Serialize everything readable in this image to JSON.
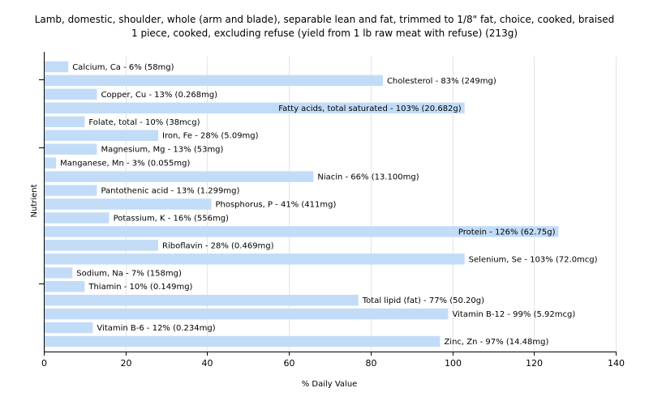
{
  "chart_data": {
    "type": "bar",
    "orientation": "horizontal",
    "title_lines": [
      "Lamb, domestic, shoulder, whole (arm and blade), separable lean and fat, trimmed to 1/8\" fat, choice, cooked, braised",
      "1 piece, cooked, excluding refuse (yield from 1 lb raw meat with refuse) (213g)"
    ],
    "xlabel": "% Daily Value",
    "ylabel": "Nutrient",
    "xlim": [
      0,
      140
    ],
    "xticks": [
      0,
      20,
      40,
      60,
      80,
      100,
      120,
      140
    ],
    "grid": true,
    "bar_color": "#c2dcf8",
    "bars": [
      {
        "name": "Calcium, Ca",
        "value": 6,
        "label": "Calcium, Ca - 6% (58mg)"
      },
      {
        "name": "Cholesterol",
        "value": 83,
        "label": "Cholesterol - 83% (249mg)"
      },
      {
        "name": "Copper, Cu",
        "value": 13,
        "label": "Copper, Cu - 13% (0.268mg)"
      },
      {
        "name": "Fatty acids, total saturated",
        "value": 103,
        "label": "Fatty acids, total saturated - 103% (20.682g)"
      },
      {
        "name": "Folate, total",
        "value": 10,
        "label": "Folate, total - 10% (38mcg)"
      },
      {
        "name": "Iron, Fe",
        "value": 28,
        "label": "Iron, Fe - 28% (5.09mg)"
      },
      {
        "name": "Magnesium, Mg",
        "value": 13,
        "label": "Magnesium, Mg - 13% (53mg)"
      },
      {
        "name": "Manganese, Mn",
        "value": 3,
        "label": "Manganese, Mn - 3% (0.055mg)"
      },
      {
        "name": "Niacin",
        "value": 66,
        "label": "Niacin - 66% (13.100mg)"
      },
      {
        "name": "Pantothenic acid",
        "value": 13,
        "label": "Pantothenic acid - 13% (1.299mg)"
      },
      {
        "name": "Phosphorus, P",
        "value": 41,
        "label": "Phosphorus, P - 41% (411mg)"
      },
      {
        "name": "Potassium, K",
        "value": 16,
        "label": "Potassium, K - 16% (556mg)"
      },
      {
        "name": "Protein",
        "value": 126,
        "label": "Protein - 126% (62.75g)"
      },
      {
        "name": "Riboflavin",
        "value": 28,
        "label": "Riboflavin - 28% (0.469mg)"
      },
      {
        "name": "Selenium, Se",
        "value": 103,
        "label": "Selenium, Se - 103% (72.0mcg)"
      },
      {
        "name": "Sodium, Na",
        "value": 7,
        "label": "Sodium, Na - 7% (158mg)"
      },
      {
        "name": "Thiamin",
        "value": 10,
        "label": "Thiamin - 10% (0.149mg)"
      },
      {
        "name": "Total lipid (fat)",
        "value": 77,
        "label": "Total lipid (fat) - 77% (50.20g)"
      },
      {
        "name": "Vitamin B-12",
        "value": 99,
        "label": "Vitamin B-12 - 99% (5.92mcg)"
      },
      {
        "name": "Vitamin B-6",
        "value": 12,
        "label": "Vitamin B-6 - 12% (0.234mg)"
      },
      {
        "name": "Zinc, Zn",
        "value": 97,
        "label": "Zinc, Zn - 97% (14.48mg)"
      }
    ]
  }
}
